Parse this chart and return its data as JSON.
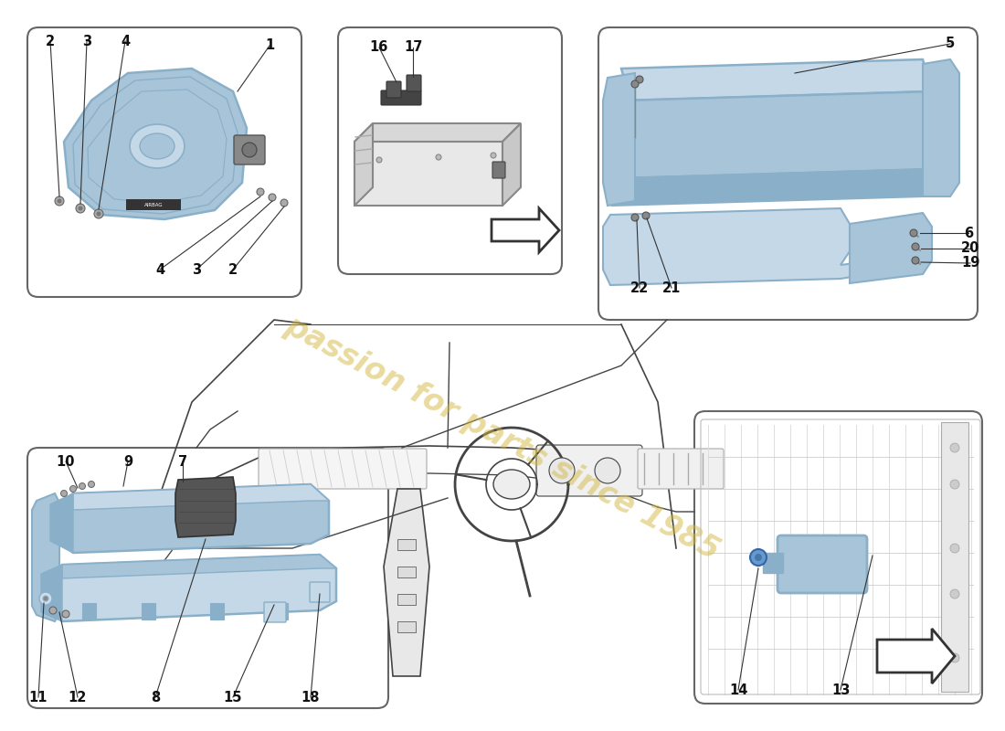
{
  "background_color": "#ffffff",
  "watermark_text": "passion for parts since 1985",
  "watermark_color": "#d4b840",
  "watermark_alpha": 0.5,
  "box_edge_color": "#666666",
  "part_color_blue": "#a8c4d8",
  "part_color_blue_dark": "#8aafc8",
  "part_color_blue_light": "#c4d8e8",
  "part_color_gray": "#d0d0d0",
  "part_color_dark": "#606060",
  "label_fontsize": 10.5,
  "label_fontweight": "bold"
}
